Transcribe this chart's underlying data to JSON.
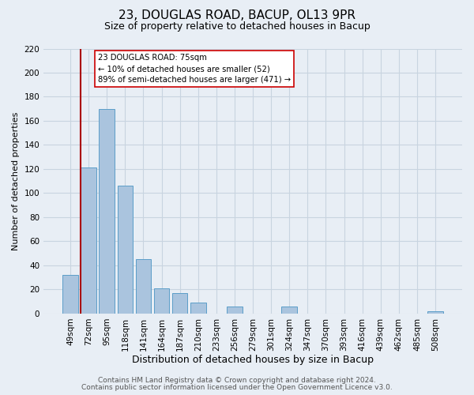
{
  "title": "23, DOUGLAS ROAD, BACUP, OL13 9PR",
  "subtitle": "Size of property relative to detached houses in Bacup",
  "xlabel": "Distribution of detached houses by size in Bacup",
  "ylabel": "Number of detached properties",
  "bar_labels": [
    "49sqm",
    "72sqm",
    "95sqm",
    "118sqm",
    "141sqm",
    "164sqm",
    "187sqm",
    "210sqm",
    "233sqm",
    "256sqm",
    "279sqm",
    "301sqm",
    "324sqm",
    "347sqm",
    "370sqm",
    "393sqm",
    "416sqm",
    "439sqm",
    "462sqm",
    "485sqm",
    "508sqm"
  ],
  "bar_values": [
    32,
    121,
    170,
    106,
    45,
    21,
    17,
    9,
    0,
    6,
    0,
    0,
    6,
    0,
    0,
    0,
    0,
    0,
    0,
    0,
    2
  ],
  "bar_color": "#aac4de",
  "bar_edgecolor": "#5b9ec9",
  "ylim": [
    0,
    220
  ],
  "yticks": [
    0,
    20,
    40,
    60,
    80,
    100,
    120,
    140,
    160,
    180,
    200,
    220
  ],
  "property_line_color": "#aa0000",
  "annotation_title": "23 DOUGLAS ROAD: 75sqm",
  "annotation_line1": "← 10% of detached houses are smaller (52)",
  "annotation_line2": "89% of semi-detached houses are larger (471) →",
  "footer1": "Contains HM Land Registry data © Crown copyright and database right 2024.",
  "footer2": "Contains public sector information licensed under the Open Government Licence v3.0.",
  "background_color": "#e8eef5",
  "plot_background_color": "#e8eef5",
  "grid_color": "#c8d4e0",
  "title_fontsize": 11,
  "subtitle_fontsize": 9,
  "xlabel_fontsize": 9,
  "ylabel_fontsize": 8,
  "tick_fontsize": 7.5,
  "footer_fontsize": 6.5
}
